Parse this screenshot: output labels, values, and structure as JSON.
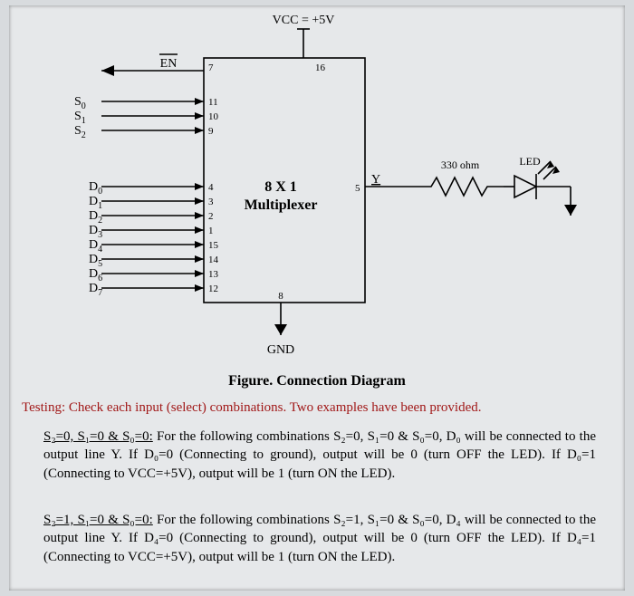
{
  "diagram": {
    "type": "schematic",
    "vcc_label": "VCC = +5V",
    "gnd_label": "GND",
    "box_title_1": "8 X 1",
    "box_title_2": "Multiplexer",
    "en_label": "EN",
    "en_pin": "7",
    "vcc_pin": "16",
    "gnd_pin": "8",
    "output_letter": "Y",
    "output_pin": "5",
    "resistor_label": "330 ohm",
    "led_label": "LED",
    "select_signals": [
      {
        "name": "S",
        "sub": "0",
        "pin": "11"
      },
      {
        "name": "S",
        "sub": "1",
        "pin": "10"
      },
      {
        "name": "S",
        "sub": "2",
        "pin": "9"
      }
    ],
    "data_signals": [
      {
        "name": "D",
        "sub": "0",
        "pin": "4"
      },
      {
        "name": "D",
        "sub": "1",
        "pin": "3"
      },
      {
        "name": "D",
        "sub": "2",
        "pin": "2"
      },
      {
        "name": "D",
        "sub": "3",
        "pin": "1"
      },
      {
        "name": "D",
        "sub": "4",
        "pin": "15"
      },
      {
        "name": "D",
        "sub": "5",
        "pin": "14"
      },
      {
        "name": "D",
        "sub": "6",
        "pin": "13"
      },
      {
        "name": "D",
        "sub": "7",
        "pin": "12"
      }
    ],
    "colors": {
      "stroke": "#000000",
      "background": "#e6e8ea",
      "testing_text": "#a11818"
    }
  },
  "caption": "Figure. Connection Diagram",
  "testing_line": "Testing: Check each input (select) combinations. Two examples have been provided.",
  "para1_lead": "S₂=0, S₁=0 & S₀=0:",
  "para1_rest": " For the following combinations S₂=0, S₁=0 & S₀=0, D₀ will be connected to the output line Y. If D₀=0 (Connecting to ground), output will be 0 (turn OFF the LED). If D₀=1 (Connecting to VCC=+5V), output will be 1 (turn ON the LED).",
  "para2_lead": "S₂=1, S₁=0 & S₀=0:",
  "para2_rest": " For the following combinations S₂=1, S₁=0 & S₀=0, D₄ will be connected to the output line Y. If D₄=0 (Connecting to ground), output will be 0 (turn OFF the LED). If D₄=1 (Connecting to VCC=+5V), output will be 1 (turn ON the LED)."
}
